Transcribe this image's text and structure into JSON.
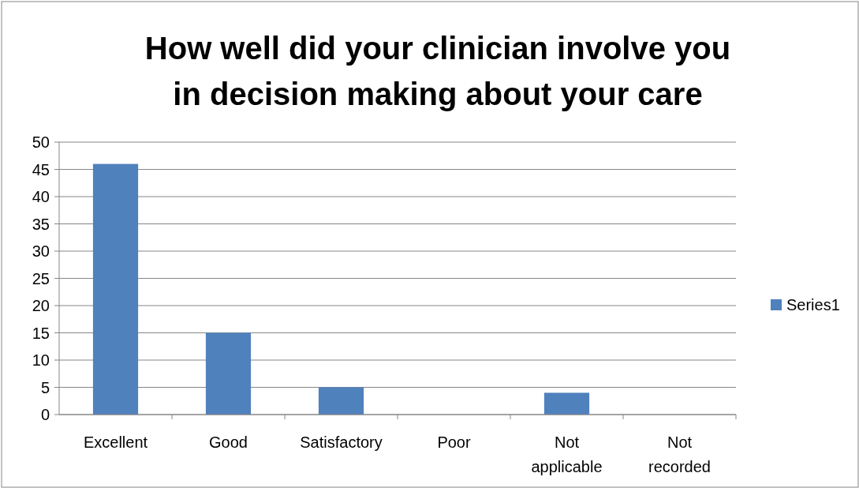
{
  "chart_data": {
    "type": "bar",
    "title": "How well did your clinician involve you in decision making about your care",
    "categories": [
      "Excellent",
      "Good",
      "Satisfactory",
      "Poor",
      "Not applicable",
      "Not recorded"
    ],
    "series": [
      {
        "name": "Series1",
        "color": "#4f81bd",
        "values": [
          46,
          15,
          5,
          0,
          4,
          0
        ]
      }
    ],
    "ylim": [
      0,
      50
    ],
    "yticks": [
      0,
      5,
      10,
      15,
      20,
      25,
      30,
      35,
      40,
      45,
      50
    ],
    "grid": "y",
    "legend": "right"
  }
}
